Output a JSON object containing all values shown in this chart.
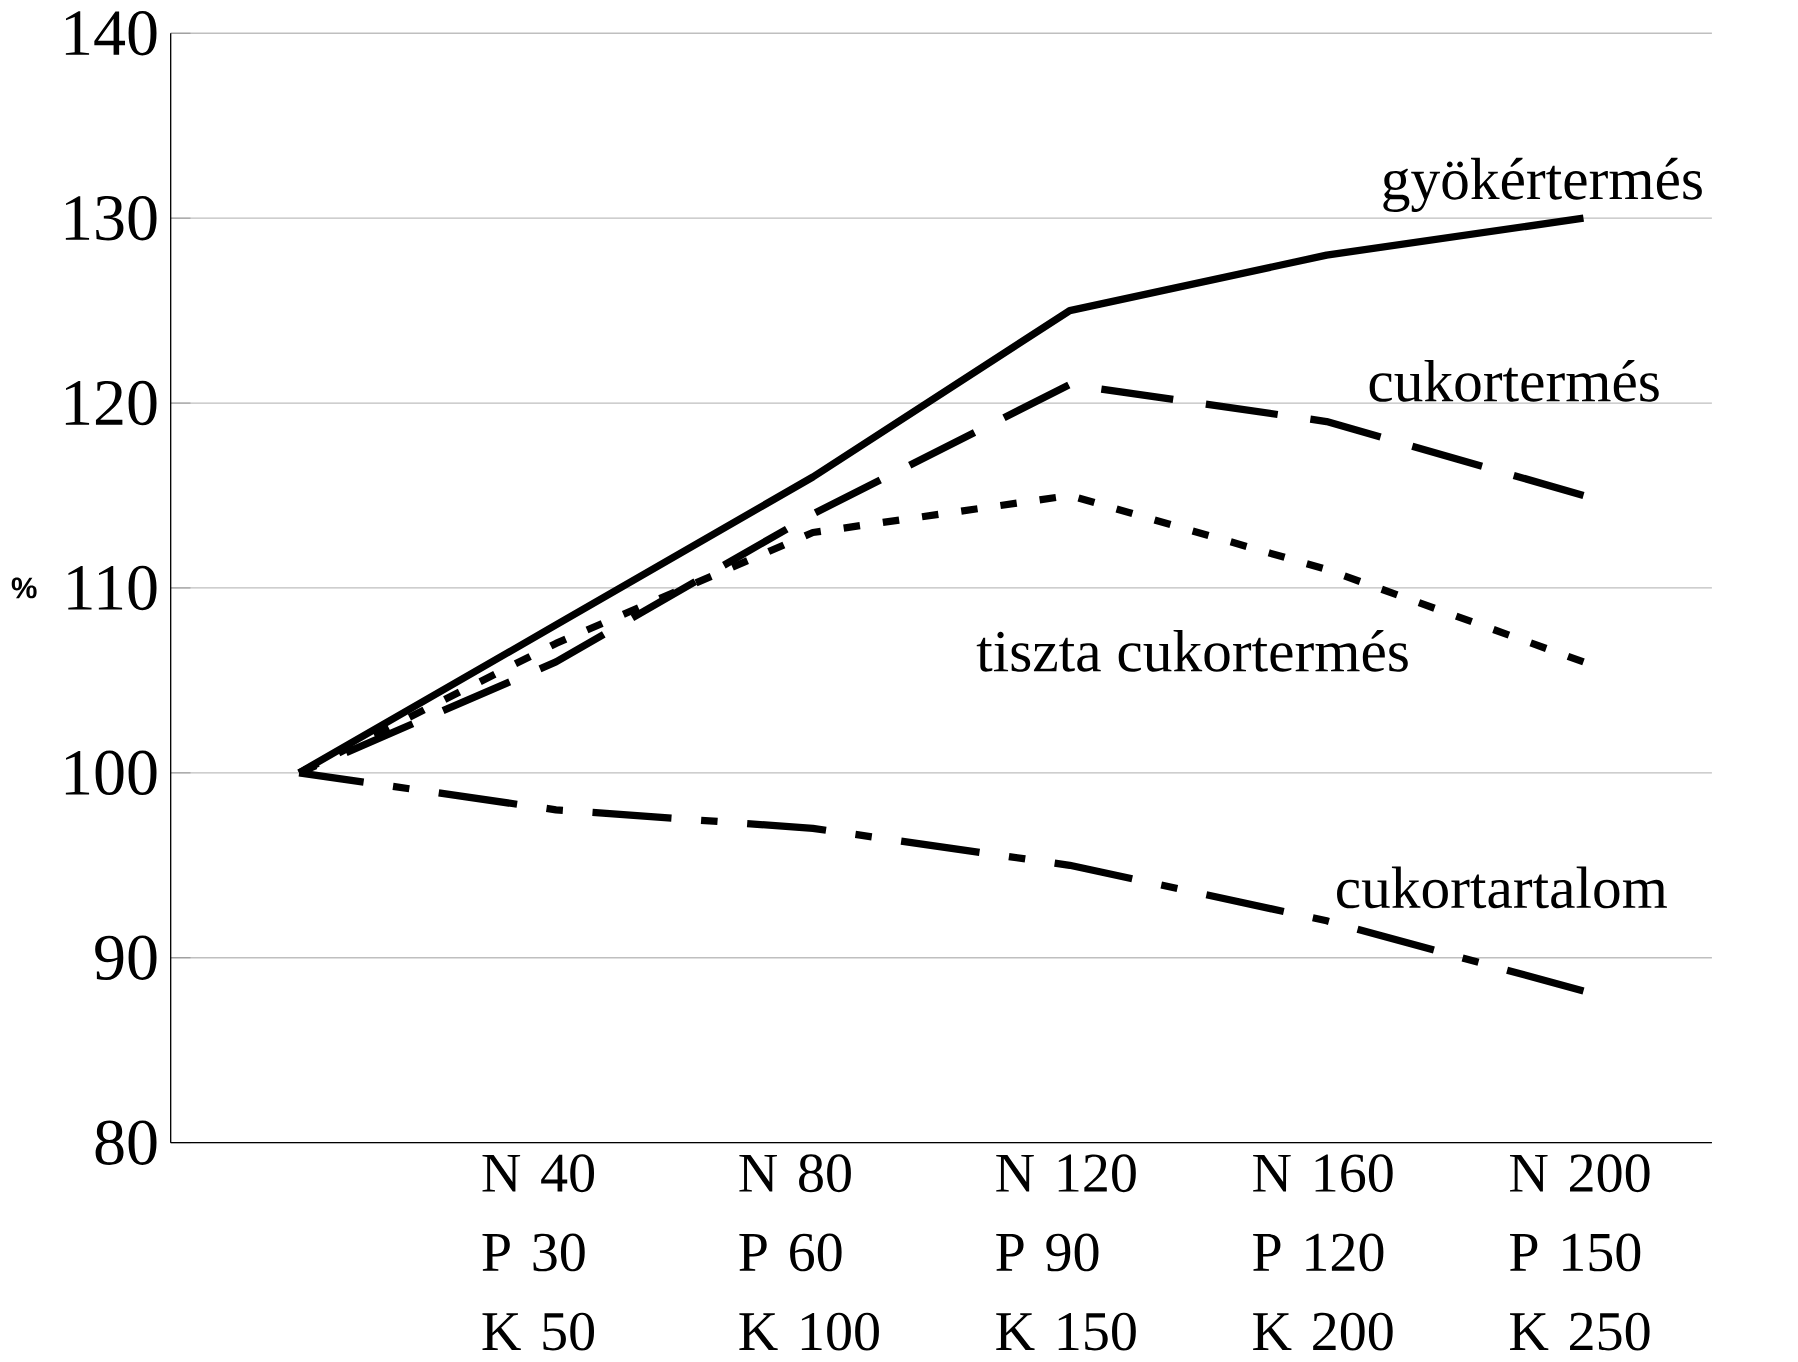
{
  "chart_data": {
    "type": "line",
    "ylabel": "%",
    "categories": [
      null,
      "N 40 P 30 K 50",
      "N 80 P 60 K 100",
      "N 120 P 90 K 150",
      "N 160 P 120 K 200",
      "N 200 P 150 K 250"
    ],
    "series": [
      {
        "name": "gyökértermés",
        "color": "#000000",
        "line_style": "solid",
        "values": [
          100,
          108,
          116,
          125,
          128,
          130
        ]
      },
      {
        "name": "cukortermés",
        "color": "#000000",
        "line_style": "dashed",
        "values": [
          100,
          106,
          114,
          121,
          119,
          115
        ]
      },
      {
        "name": "tiszta cukortermés",
        "color": "#000000",
        "line_style": "dotted",
        "values": [
          100,
          107,
          113,
          115,
          111,
          106
        ]
      },
      {
        "name": "cukortartalom",
        "color": "#000000",
        "line_style": "dashdot",
        "values": [
          100,
          98,
          97,
          95,
          92,
          88.2
        ]
      }
    ],
    "ylim": [
      80,
      140
    ],
    "yticks": [
      80,
      90,
      100,
      110,
      120,
      130,
      140
    ],
    "grid": "y"
  }
}
